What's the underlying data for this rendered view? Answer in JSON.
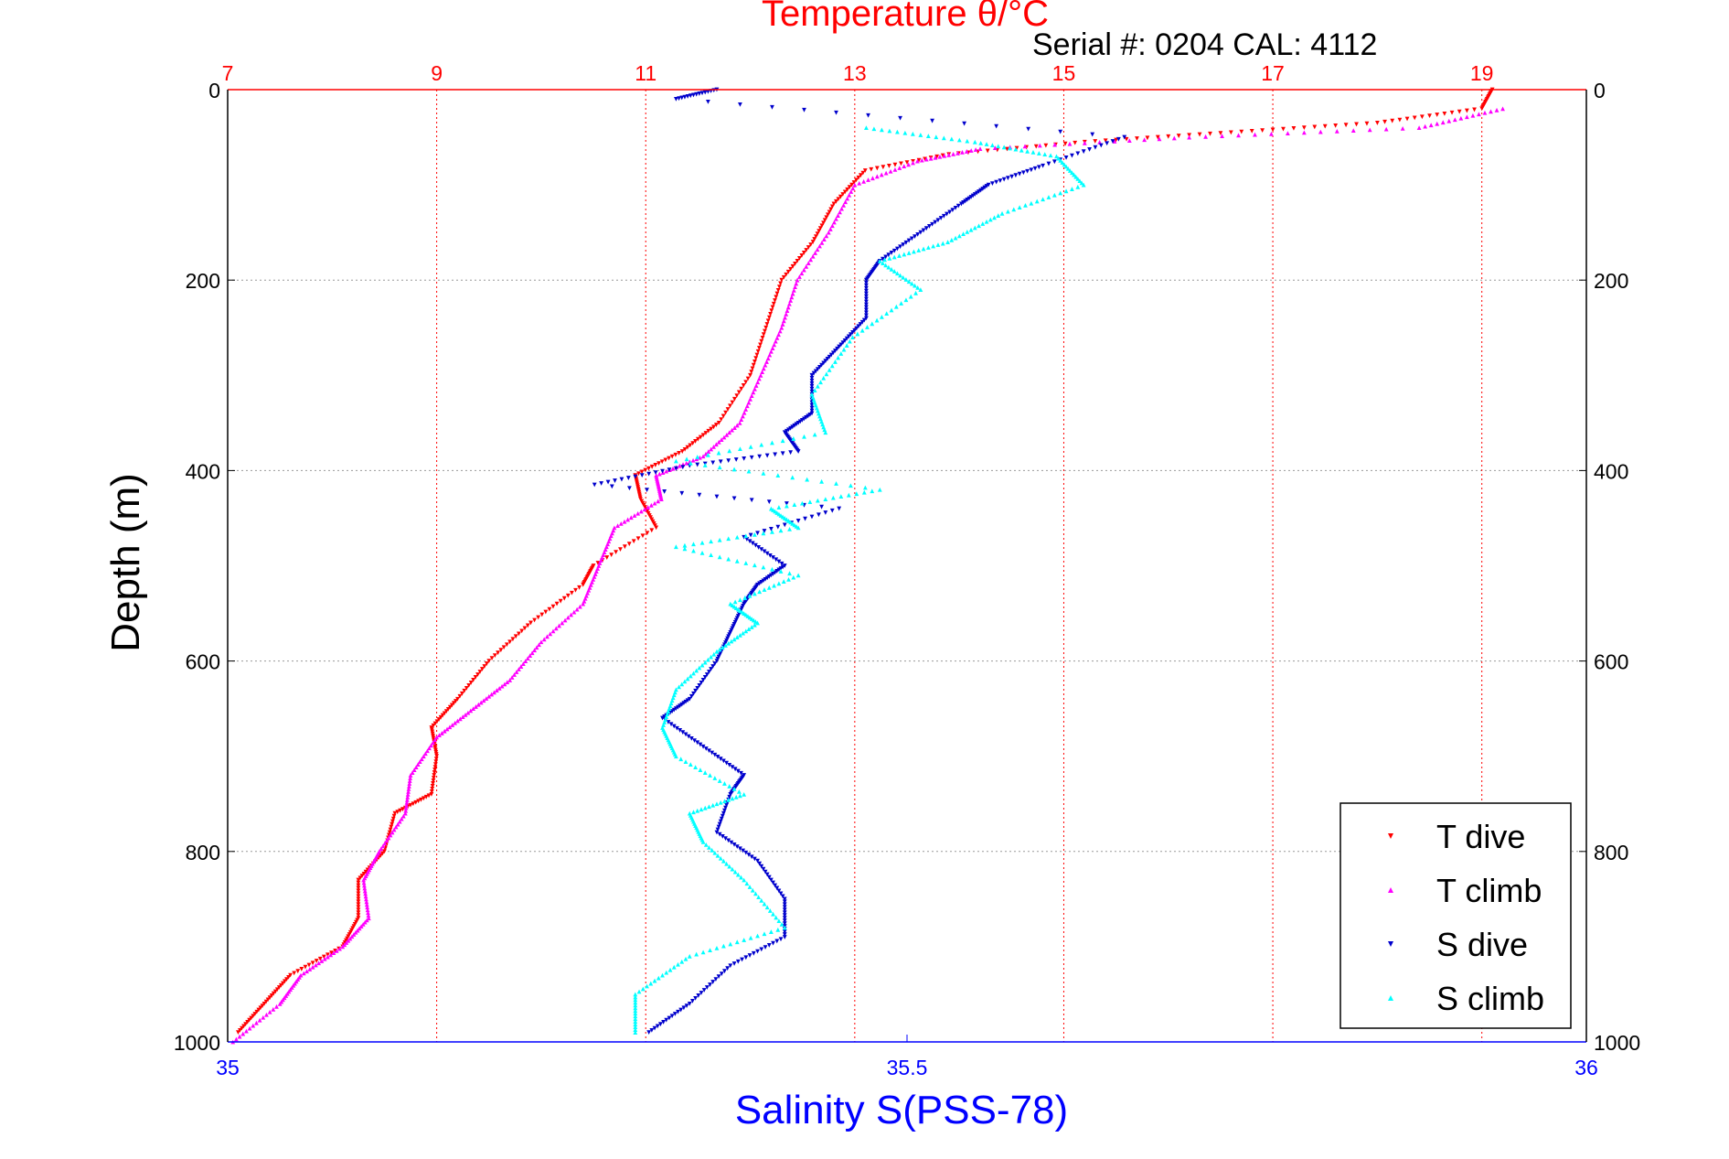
{
  "chart_data": {
    "type": "scatter",
    "title": "Temperature θ/°C",
    "subtitle": "Serial #: 0204  CAL: 4112",
    "ylabel": "Depth (m)",
    "xlabel_bottom": "Salinity S(PSS-78)",
    "y_axis": {
      "min": 0,
      "max": 1000,
      "reversed": true,
      "ticks": [
        "0",
        "200",
        "400",
        "600",
        "800",
        "1000"
      ]
    },
    "x_top": {
      "label": "Temperature θ/°C",
      "min": 7,
      "max": 20,
      "ticks": [
        "7",
        "9",
        "11",
        "13",
        "15",
        "17",
        "19"
      ]
    },
    "x_bottom": {
      "label": "Salinity S(PSS-78)",
      "min": 35,
      "max": 36,
      "ticks": [
        "35",
        "35.5",
        "36"
      ]
    },
    "grid": true,
    "legend": {
      "position": "bottom-right"
    },
    "colors": {
      "title": "#ff0000",
      "salinity_axis": "#0000ff",
      "t_dive": "#ff0000",
      "t_climb": "#ff00ff",
      "s_dive": "#0000cc",
      "s_climb": "#00ffff",
      "grid": "#999999"
    },
    "series": [
      {
        "name": "T dive",
        "axis": "top",
        "marker": "triangle-down",
        "points": [
          [
            19.1,
            0
          ],
          [
            19.0,
            20
          ],
          [
            18.0,
            35
          ],
          [
            16.6,
            45
          ],
          [
            15.2,
            55
          ],
          [
            13.9,
            68
          ],
          [
            13.1,
            85
          ],
          [
            12.8,
            120
          ],
          [
            12.6,
            160
          ],
          [
            12.3,
            200
          ],
          [
            12.15,
            250
          ],
          [
            12.0,
            300
          ],
          [
            11.7,
            350
          ],
          [
            11.35,
            380
          ],
          [
            10.9,
            405
          ],
          [
            10.95,
            430
          ],
          [
            11.1,
            460
          ],
          [
            10.5,
            500
          ],
          [
            10.4,
            520
          ],
          [
            9.9,
            560
          ],
          [
            9.5,
            600
          ],
          [
            9.2,
            640
          ],
          [
            8.95,
            670
          ],
          [
            9.0,
            700
          ],
          [
            8.95,
            740
          ],
          [
            8.6,
            760
          ],
          [
            8.5,
            800
          ],
          [
            8.25,
            830
          ],
          [
            8.25,
            870
          ],
          [
            8.1,
            900
          ],
          [
            7.6,
            930
          ],
          [
            7.35,
            960
          ],
          [
            7.1,
            990
          ]
        ]
      },
      {
        "name": "T climb",
        "axis": "top",
        "marker": "triangle-up",
        "points": [
          [
            19.2,
            20
          ],
          [
            18.4,
            40
          ],
          [
            16.2,
            50
          ],
          [
            14.2,
            62
          ],
          [
            13.6,
            75
          ],
          [
            13.0,
            100
          ],
          [
            12.75,
            150
          ],
          [
            12.45,
            200
          ],
          [
            12.3,
            250
          ],
          [
            12.1,
            300
          ],
          [
            11.9,
            350
          ],
          [
            11.55,
            385
          ],
          [
            11.1,
            405
          ],
          [
            11.15,
            430
          ],
          [
            10.7,
            460
          ],
          [
            10.55,
            500
          ],
          [
            10.4,
            540
          ],
          [
            10.0,
            580
          ],
          [
            9.7,
            620
          ],
          [
            9.35,
            650
          ],
          [
            9.0,
            680
          ],
          [
            8.75,
            720
          ],
          [
            8.7,
            760
          ],
          [
            8.45,
            800
          ],
          [
            8.3,
            830
          ],
          [
            8.35,
            870
          ],
          [
            8.1,
            900
          ],
          [
            7.7,
            930
          ],
          [
            7.5,
            960
          ],
          [
            7.05,
            1000
          ]
        ]
      },
      {
        "name": "S dive",
        "axis": "bottom",
        "marker": "triangle-down",
        "points": [
          [
            35.36,
            0
          ],
          [
            35.33,
            10
          ],
          [
            35.66,
            50
          ],
          [
            35.6,
            80
          ],
          [
            35.56,
            100
          ],
          [
            35.54,
            120
          ],
          [
            35.51,
            150
          ],
          [
            35.48,
            180
          ],
          [
            35.47,
            200
          ],
          [
            35.47,
            240
          ],
          [
            35.45,
            270
          ],
          [
            35.43,
            300
          ],
          [
            35.43,
            340
          ],
          [
            35.41,
            360
          ],
          [
            35.42,
            380
          ],
          [
            35.34,
            395
          ],
          [
            35.27,
            415
          ],
          [
            35.45,
            440
          ],
          [
            35.38,
            470
          ],
          [
            35.41,
            500
          ],
          [
            35.39,
            520
          ],
          [
            35.38,
            540
          ],
          [
            35.37,
            570
          ],
          [
            35.36,
            600
          ],
          [
            35.34,
            640
          ],
          [
            35.32,
            660
          ],
          [
            35.35,
            690
          ],
          [
            35.38,
            720
          ],
          [
            35.37,
            740
          ],
          [
            35.36,
            780
          ],
          [
            35.39,
            810
          ],
          [
            35.41,
            850
          ],
          [
            35.41,
            890
          ],
          [
            35.37,
            920
          ],
          [
            35.34,
            960
          ],
          [
            35.31,
            990
          ]
        ]
      },
      {
        "name": "S climb",
        "axis": "bottom",
        "marker": "triangle-up",
        "points": [
          [
            35.47,
            40
          ],
          [
            35.55,
            55
          ],
          [
            35.61,
            70
          ],
          [
            35.63,
            100
          ],
          [
            35.57,
            130
          ],
          [
            35.53,
            160
          ],
          [
            35.48,
            180
          ],
          [
            35.51,
            210
          ],
          [
            35.46,
            260
          ],
          [
            35.43,
            320
          ],
          [
            35.44,
            360
          ],
          [
            35.33,
            390
          ],
          [
            35.48,
            420
          ],
          [
            35.4,
            440
          ],
          [
            35.42,
            460
          ],
          [
            35.33,
            480
          ],
          [
            35.42,
            510
          ],
          [
            35.37,
            540
          ],
          [
            35.39,
            560
          ],
          [
            35.36,
            590
          ],
          [
            35.33,
            630
          ],
          [
            35.32,
            670
          ],
          [
            35.33,
            700
          ],
          [
            35.38,
            740
          ],
          [
            35.34,
            760
          ],
          [
            35.35,
            790
          ],
          [
            35.38,
            830
          ],
          [
            35.41,
            880
          ],
          [
            35.34,
            910
          ],
          [
            35.3,
            950
          ],
          [
            35.3,
            990
          ]
        ]
      }
    ]
  }
}
